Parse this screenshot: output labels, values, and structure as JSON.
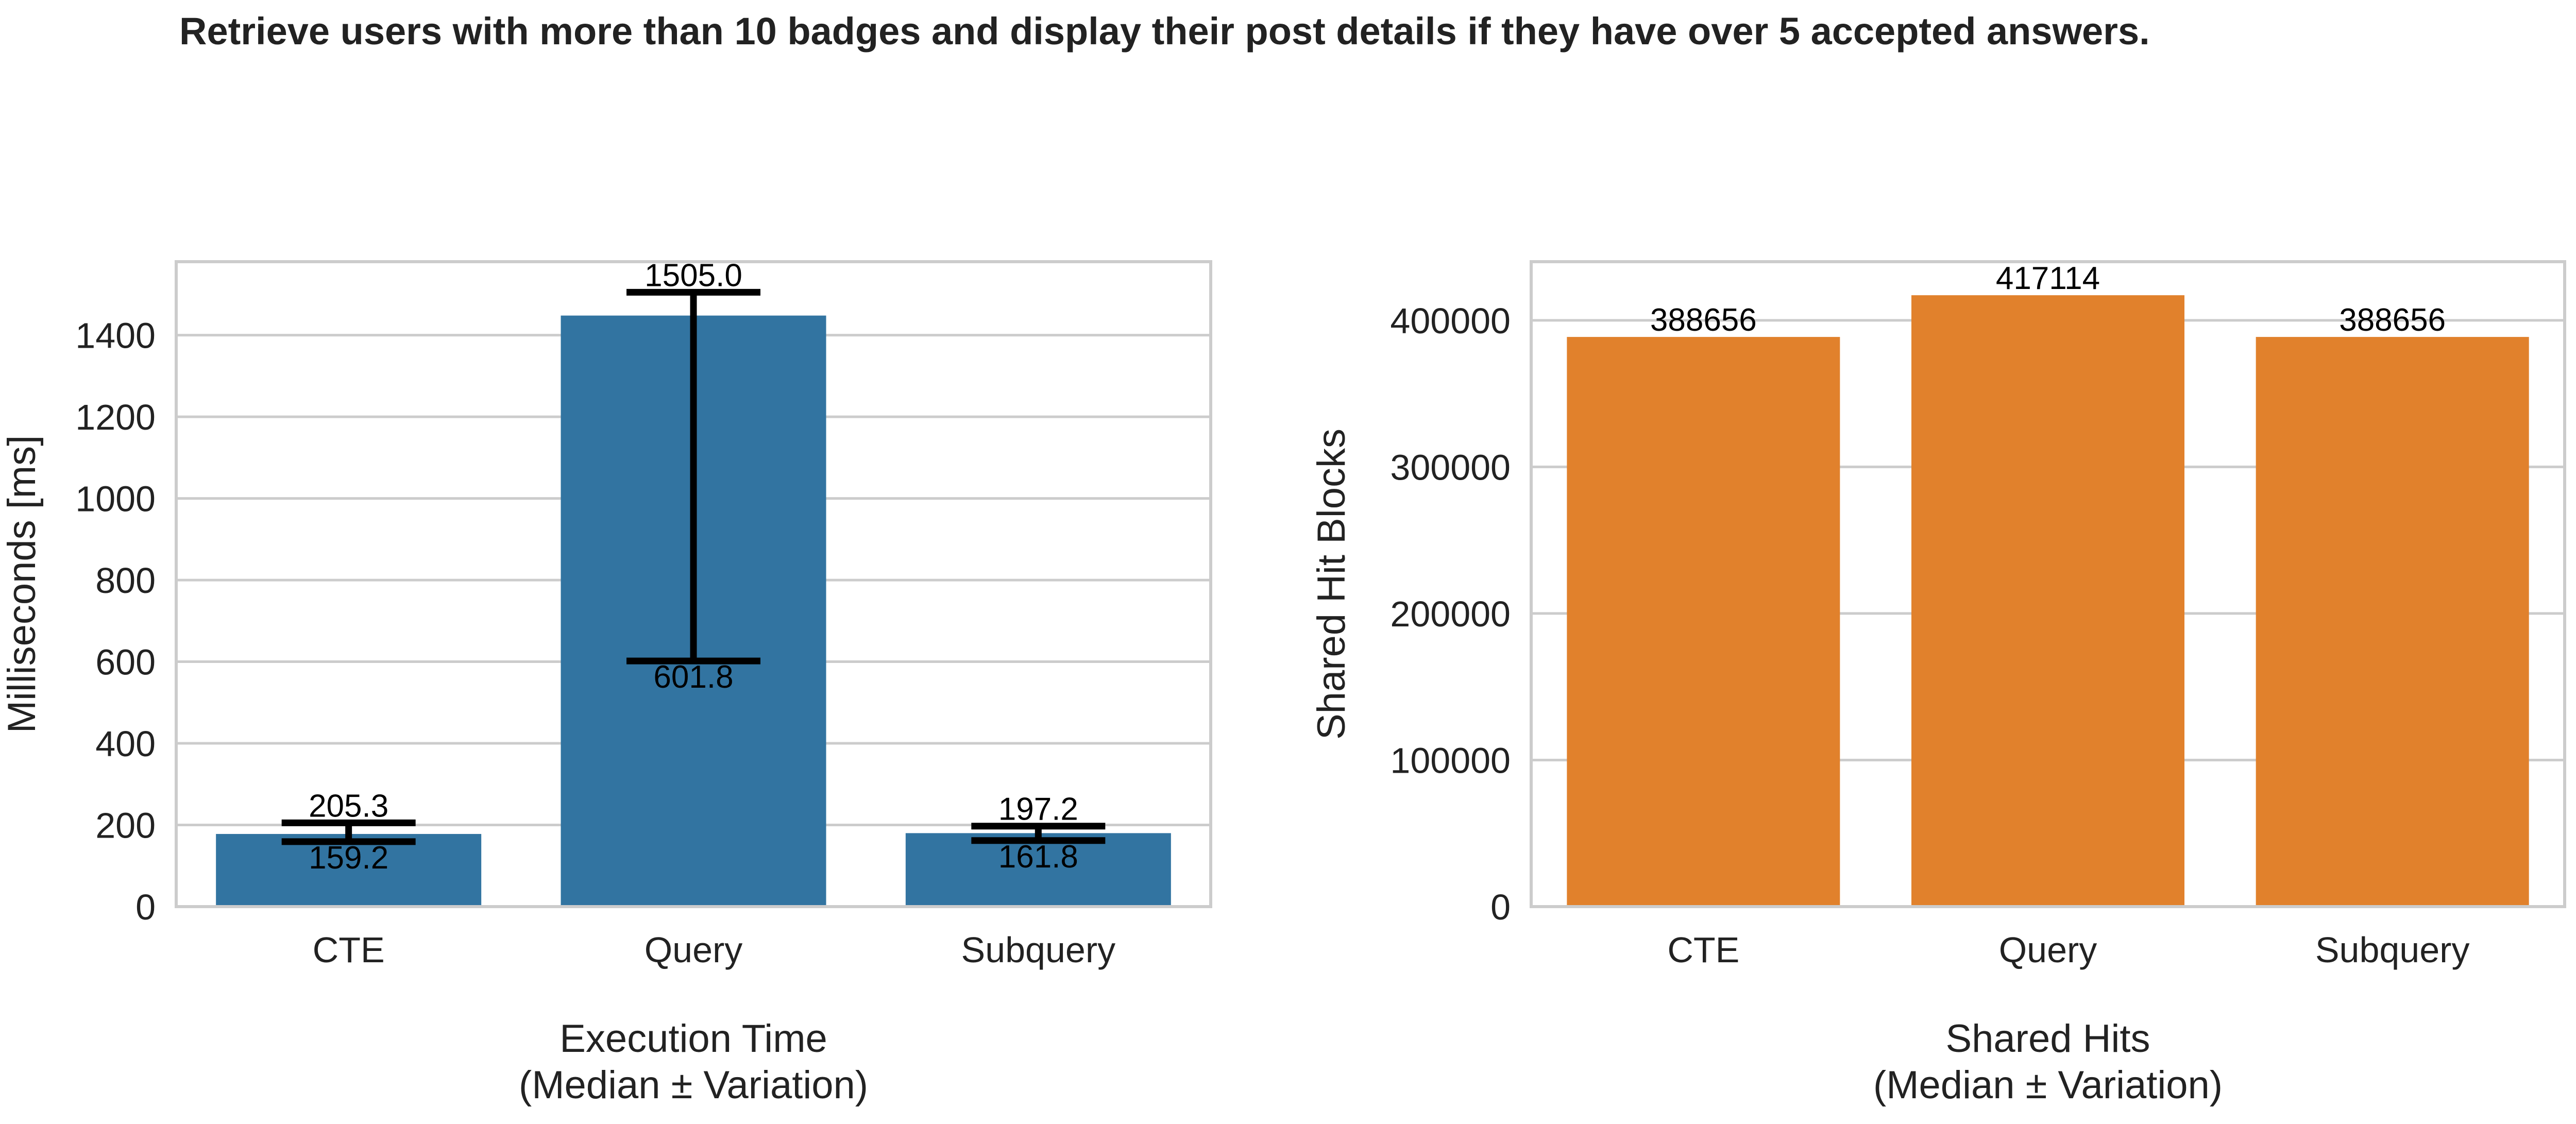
{
  "figure": {
    "title": "Retrieve users with more than 10 badges and display their post details if they have over 5 accepted answers."
  },
  "colors": {
    "blue": "#3274a1",
    "orange": "#e1812c",
    "grid": "#cccccc",
    "spine": "#cccccc",
    "text": "#222222"
  },
  "chart_data": [
    {
      "type": "bar",
      "categories": [
        "CTE",
        "Query",
        "Subquery"
      ],
      "values": [
        178,
        1448,
        180
      ],
      "error_low": [
        159.2,
        601.8,
        161.8
      ],
      "error_high": [
        205.3,
        1505.0,
        197.2
      ],
      "error_low_labels": [
        "159.2",
        "601.8",
        "161.8"
      ],
      "error_high_labels": [
        "205.3",
        "1505.0",
        "197.2"
      ],
      "xlabel_line1": "Execution Time",
      "xlabel_line2": "(Median ± Variation)",
      "ylabel": "Milliseconds [ms]",
      "ylim": [
        0,
        1580
      ],
      "yticks": [
        0,
        200,
        400,
        600,
        800,
        1000,
        1200,
        1400
      ],
      "grid": true,
      "color": "#3274a1"
    },
    {
      "type": "bar",
      "categories": [
        "CTE",
        "Query",
        "Subquery"
      ],
      "values": [
        388656,
        417114,
        388656
      ],
      "value_labels": [
        "388656",
        "417114",
        "388656"
      ],
      "xlabel_line1": "Shared Hits",
      "xlabel_line2": "(Median ± Variation)",
      "ylabel": "Shared Hit Blocks",
      "ylim": [
        0,
        440000
      ],
      "yticks": [
        0,
        100000,
        200000,
        300000,
        400000
      ],
      "grid": true,
      "color": "#e1812c"
    }
  ]
}
